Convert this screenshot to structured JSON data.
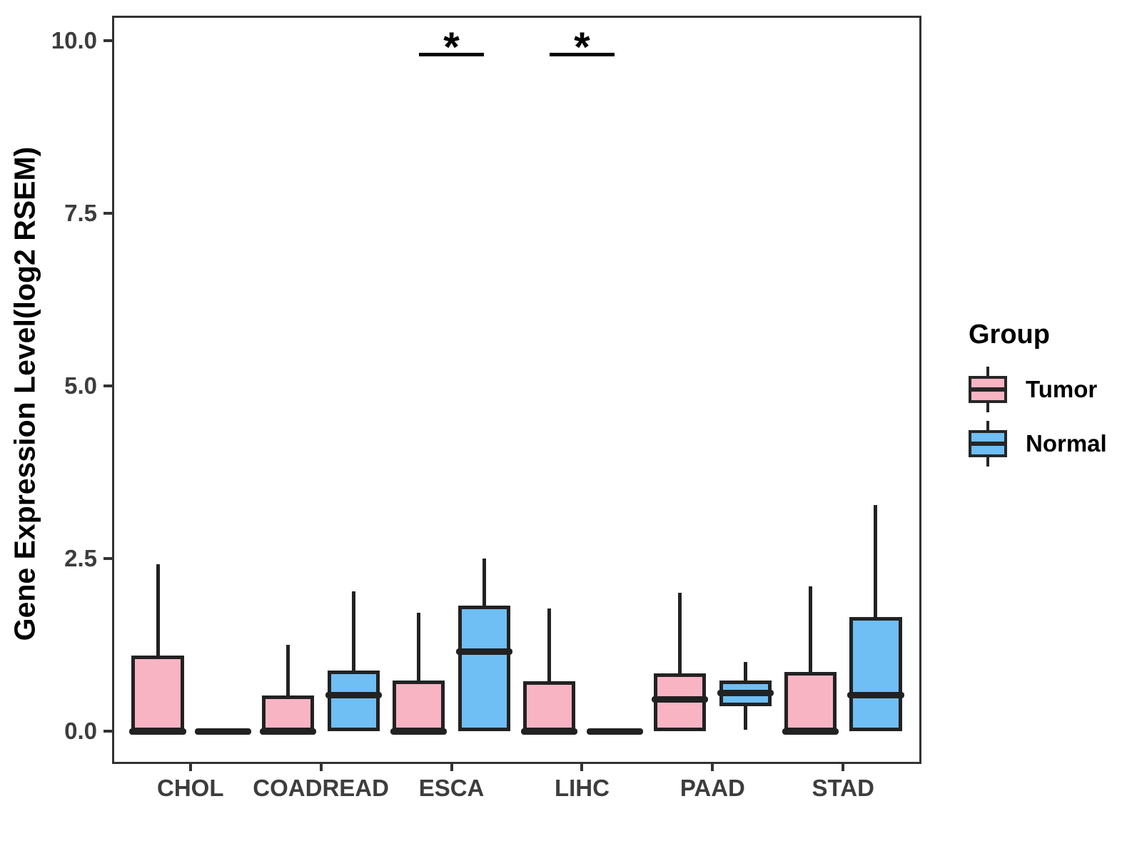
{
  "chart_data": {
    "type": "boxplot",
    "title": "",
    "xlabel": "",
    "ylabel": "Gene Expression Level(log2 RSEM)",
    "ylim": [
      -0.47,
      10.36
    ],
    "yticks": [
      0.0,
      2.5,
      5.0,
      7.5,
      10.0
    ],
    "ytick_labels": [
      "0.0",
      "2.5",
      "5.0",
      "7.5",
      "10.0"
    ],
    "categories": [
      "CHOL",
      "COADREAD",
      "ESCA",
      "LIHC",
      "PAAD",
      "STAD"
    ],
    "grid": false,
    "legend": {
      "title": "Group",
      "position": "right",
      "items": [
        {
          "label": "Tumor",
          "color": "#F9B4C4"
        },
        {
          "label": "Normal",
          "color": "#6FBEF4"
        }
      ]
    },
    "series": [
      {
        "name": "Tumor",
        "color": "#F9B4C4",
        "boxes": [
          {
            "category": "CHOL",
            "low": 0,
            "q1": 0,
            "median": 0,
            "q3": 1.1,
            "high": 2.42
          },
          {
            "category": "COADREAD",
            "low": 0,
            "q1": 0,
            "median": 0,
            "q3": 0.52,
            "high": 1.25
          },
          {
            "category": "ESCA",
            "low": 0,
            "q1": 0,
            "median": 0,
            "q3": 0.73,
            "high": 1.72
          },
          {
            "category": "LIHC",
            "low": 0,
            "q1": 0,
            "median": 0,
            "q3": 0.72,
            "high": 1.78
          },
          {
            "category": "PAAD",
            "low": 0,
            "q1": 0,
            "median": 0.46,
            "q3": 0.84,
            "high": 2.0
          },
          {
            "category": "STAD",
            "low": 0,
            "q1": 0,
            "median": 0,
            "q3": 0.86,
            "high": 2.1
          }
        ]
      },
      {
        "name": "Normal",
        "color": "#6FBEF4",
        "boxes": [
          {
            "category": "CHOL",
            "low": 0,
            "q1": 0,
            "median": 0,
            "q3": 0,
            "high": 0
          },
          {
            "category": "COADREAD",
            "low": 0,
            "q1": 0,
            "median": 0.52,
            "q3": 0.88,
            "high": 2.02
          },
          {
            "category": "ESCA",
            "low": 0,
            "q1": 0,
            "median": 1.15,
            "q3": 1.82,
            "high": 2.5
          },
          {
            "category": "LIHC",
            "low": 0,
            "q1": 0,
            "median": 0,
            "q3": 0,
            "high": 0
          },
          {
            "category": "PAAD",
            "low": 0.02,
            "q1": 0.36,
            "median": 0.55,
            "q3": 0.73,
            "high": 1.0
          },
          {
            "category": "STAD",
            "low": 0,
            "q1": 0,
            "median": 0.52,
            "q3": 1.65,
            "high": 3.27
          }
        ]
      }
    ],
    "annotations": [
      {
        "category": "ESCA",
        "text": "*",
        "y": 9.82
      },
      {
        "category": "LIHC",
        "text": "*",
        "y": 9.82
      }
    ]
  }
}
